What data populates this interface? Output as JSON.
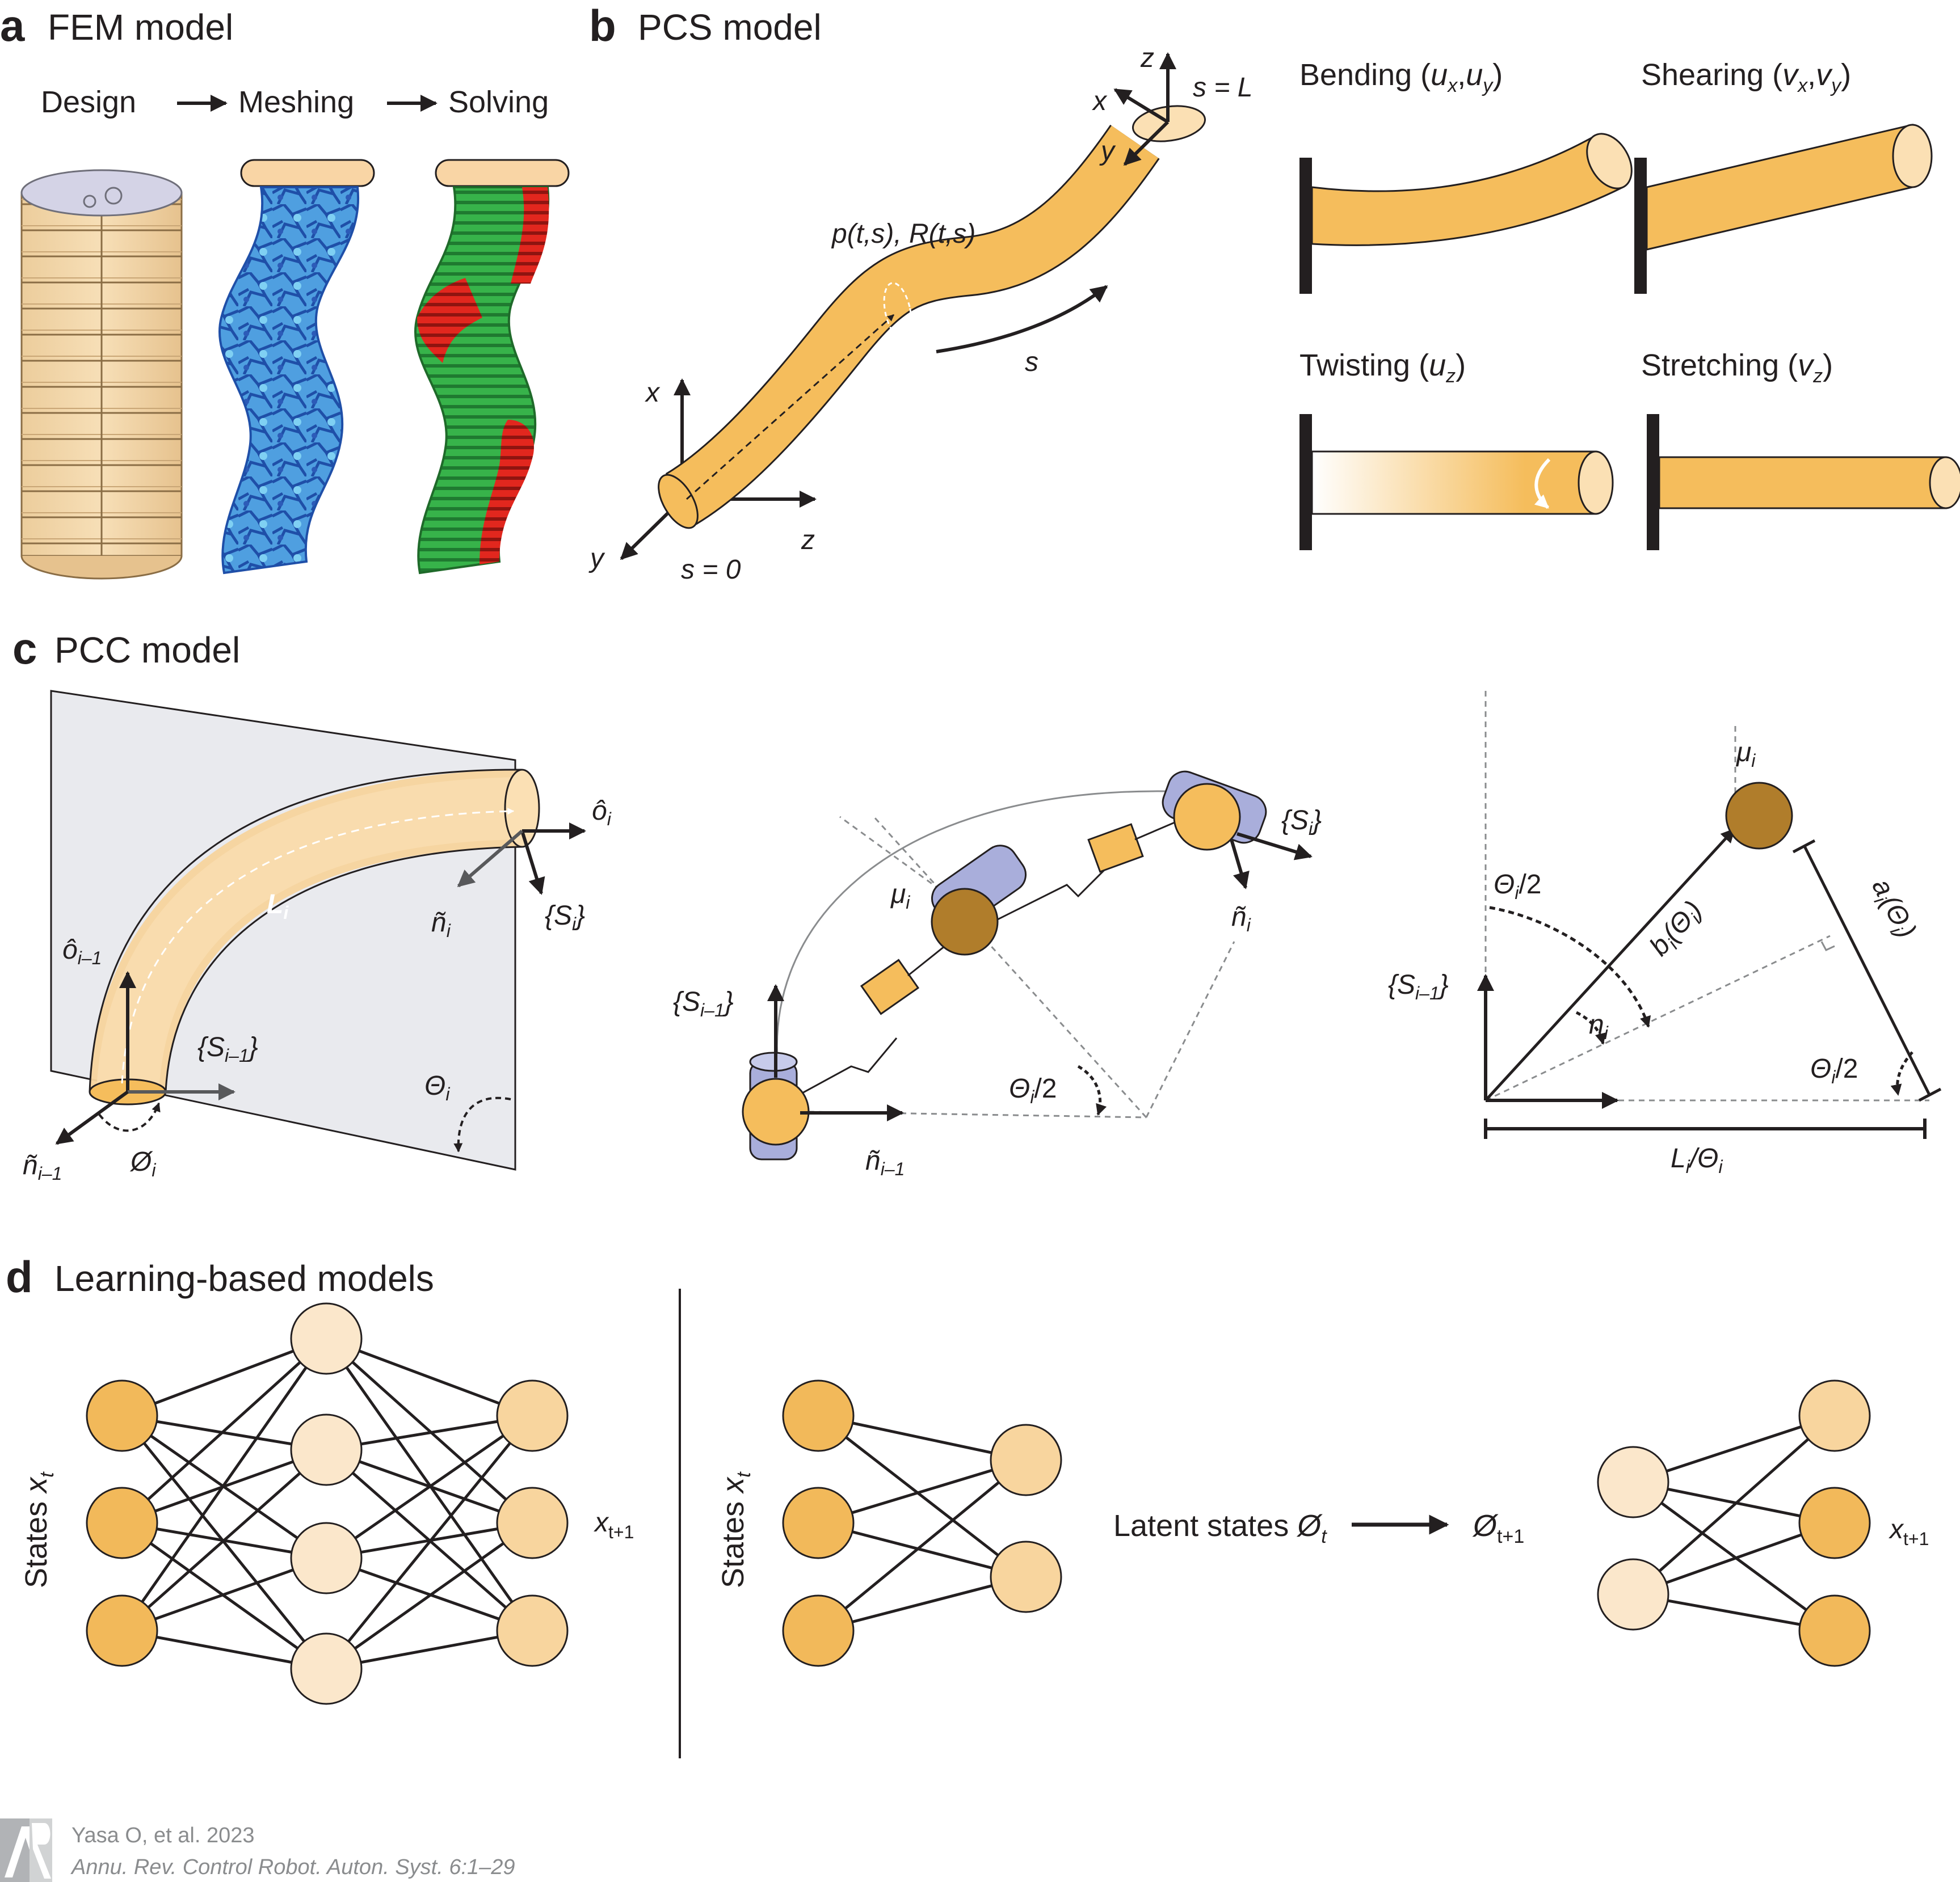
{
  "colors": {
    "tube": "#f5bd5c",
    "tube_light": "#fbe0b4",
    "tube_dark": "#d9982e",
    "node_dark": "#f2b95a",
    "node_mid": "#f8d59e",
    "node_light": "#fbe7cb",
    "joint_blue": "#a9aedb",
    "brown": "#b07d2b",
    "fem_green": "#33b54a",
    "fem_red": "#e1251b",
    "mesh_blue": "#2b68c8",
    "mesh_light": "#55b6ea",
    "design_body": "#f4d8ac",
    "plane": "#e9eaee",
    "ink": "#231f20"
  },
  "panel_a": {
    "letter": "a",
    "title": "FEM model",
    "steps": [
      "Design",
      "Meshing",
      "Solving"
    ]
  },
  "panel_b": {
    "letter": "b",
    "title": "PCS model",
    "labels": {
      "pose": "p(t,s), R(t,s)",
      "arc": "s",
      "start": "s = 0",
      "end": "s = L",
      "axis_x": "x",
      "axis_y": "y",
      "axis_z": "z"
    },
    "modes": [
      {
        "name": "Bending (",
        "var": "u",
        "sub1": "x",
        "sep": ",",
        "var2": "u",
        "sub2": "y",
        "close": ")"
      },
      {
        "name": "Shearing (",
        "var": "v",
        "sub1": "x",
        "sep": ",",
        "var2": "v",
        "sub2": "y",
        "close": ")"
      },
      {
        "name": "Twisting (",
        "var": "u",
        "sub1": "z",
        "sep": "",
        "var2": "",
        "sub2": "",
        "close": ")"
      },
      {
        "name": "Stretching (",
        "var": "v",
        "sub1": "z",
        "sep": "",
        "var2": "",
        "sub2": "",
        "close": ")"
      }
    ]
  },
  "panel_c": {
    "letter": "c",
    "title": "PCC model",
    "left": {
      "length": "L",
      "length_sub": "i",
      "o_i": "ô",
      "o_i_sub": "i",
      "o_prev": "ô",
      "o_prev_sub": "i–1",
      "n_i": "ñ",
      "n_i_sub": "i",
      "n_prev": "ñ",
      "n_prev_sub": "i–1",
      "frame_i": "{S",
      "frame_i_sub": "i",
      "frame_prev": "{S",
      "frame_prev_sub": "i–1",
      "phi": "Ø",
      "phi_sub": "i",
      "theta": "Θ",
      "theta_sub": "i"
    },
    "middle": {
      "mu": "μ",
      "mu_sub": "i",
      "frame_i": "{S",
      "frame_i_sub": "i",
      "frame_prev": "{S",
      "frame_prev_sub": "i–1",
      "n_i": "ñ",
      "n_i_sub": "i",
      "n_prev": "ñ",
      "n_prev_sub": "i–1",
      "theta_half": "Θ",
      "theta_half_sub": "i",
      "theta_half_tail": "/2"
    },
    "right": {
      "mu": "μ",
      "mu_sub": "i",
      "theta_half_top": "Θ",
      "theta_half_top_sub": "i",
      "theta_half_top_tail": "/2",
      "b": "b",
      "b_sub": "i",
      "b_tail": "(Θ",
      "b_tail_sub": "i",
      "b_close": ")",
      "a": "a",
      "a_sub": "i",
      "a_tail": "(Θ",
      "a_tail_sub": "i",
      "a_close": ")",
      "n": "n",
      "n_sub": "i",
      "theta_half_bottom": "Θ",
      "theta_half_bottom_sub": "i",
      "theta_half_bottom_tail": "/2",
      "frame_prev": "{S",
      "frame_prev_sub": "i–1",
      "length": "L",
      "length_sub": "i",
      "length_mid": "/Θ",
      "length_sub2": "i"
    }
  },
  "panel_d": {
    "letter": "d",
    "title": "Learning-based models",
    "states": "States ",
    "states_var": "x",
    "states_sub": "t",
    "next": "x",
    "next_sub": "t+1",
    "latent": "Latent states ",
    "latent_var": "Ø",
    "latent_sub": "t",
    "latent_next": "Ø",
    "latent_next_sub": "t+1"
  },
  "citation": {
    "line1": "Yasa O, et al. 2023",
    "line2": "Annu. Rev. Control Robot. Auton. Syst. 6:1–29"
  }
}
